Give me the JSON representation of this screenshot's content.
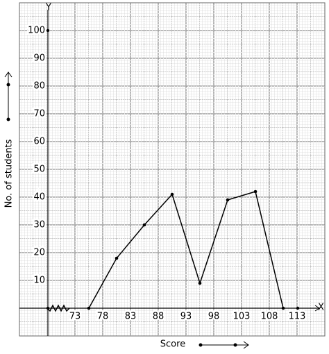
{
  "chart_data": {
    "type": "line",
    "x_label": "Score",
    "y_label": "No. of students",
    "x_axis_name": "X",
    "y_axis_name": "Y",
    "x": [
      75.5,
      80.5,
      85.5,
      90.5,
      95.5,
      100.5,
      105.5,
      110.5
    ],
    "series": [
      {
        "color": "#000000",
        "values": [
          0,
          18,
          30,
          41,
          9,
          39,
          42,
          0
        ]
      }
    ],
    "xlim": [
      63,
      118
    ],
    "ylim": [
      -10,
      110
    ],
    "xticks": [
      73,
      78,
      83,
      88,
      93,
      98,
      103,
      108,
      113
    ],
    "yticks": [
      10,
      20,
      30,
      40,
      50,
      60,
      70,
      80,
      90,
      100
    ],
    "grid": true
  }
}
